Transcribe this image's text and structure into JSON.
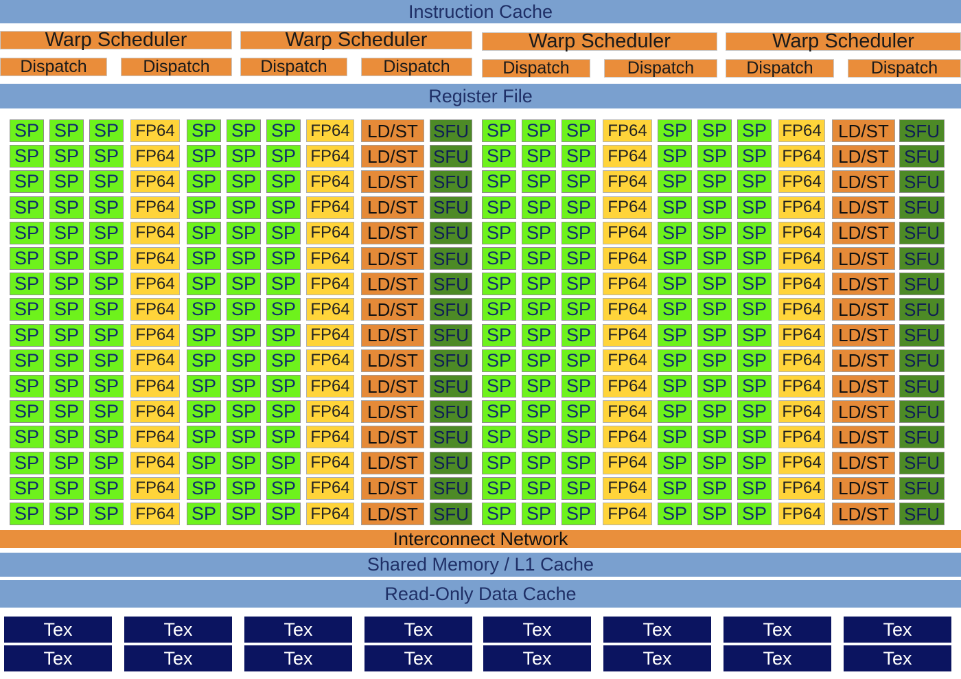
{
  "instruction_cache": "Instruction Cache",
  "warp_schedulers": [
    {
      "label": "Warp Scheduler",
      "dispatch": [
        "Dispatch",
        "Dispatch"
      ]
    },
    {
      "label": "Warp Scheduler",
      "dispatch": [
        "Dispatch",
        "Dispatch"
      ]
    },
    {
      "label": "Warp Scheduler",
      "dispatch": [
        "Dispatch",
        "Dispatch"
      ]
    },
    {
      "label": "Warp Scheduler",
      "dispatch": [
        "Dispatch",
        "Dispatch"
      ]
    }
  ],
  "register_file": "Register File",
  "core_grid": {
    "rows": 16,
    "column_pattern": [
      "SP",
      "SP",
      "SP",
      "FP64",
      "SP",
      "SP",
      "SP",
      "FP64",
      "LD/ST",
      "SFU",
      "SP",
      "SP",
      "SP",
      "FP64",
      "SP",
      "SP",
      "SP",
      "FP64",
      "LD/ST",
      "SFU"
    ]
  },
  "interconnect_network": "Interconnect Network",
  "shared_memory": "Shared Memory / L1 Cache",
  "read_only_cache": "Read-Only Data Cache",
  "tex_units": [
    [
      "Tex",
      "Tex",
      "Tex",
      "Tex",
      "Tex",
      "Tex",
      "Tex",
      "Tex"
    ],
    [
      "Tex",
      "Tex",
      "Tex",
      "Tex",
      "Tex",
      "Tex",
      "Tex",
      "Tex"
    ]
  ],
  "colors": {
    "cache_blue": "#7aa0cf",
    "orange": "#e98f3c",
    "sp_green": "#6ef21c",
    "fp64_yellow": "#ffd43a",
    "sfu_green": "#4d8a26",
    "tex_navy": "#0b1460"
  }
}
